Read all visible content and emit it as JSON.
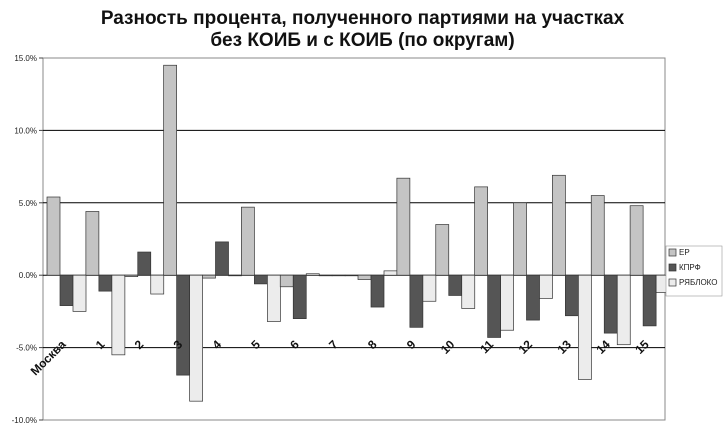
{
  "chart_data": {
    "type": "bar",
    "title_lines": [
      "Разность процента, полученного партиями на участках",
      "без КОИБ и с КОИБ (по округам)"
    ],
    "categories": [
      "Москва",
      "1",
      "2",
      "3",
      "4",
      "5",
      "6",
      "7",
      "8",
      "9",
      "10",
      "11",
      "12",
      "13",
      "14",
      "15"
    ],
    "series": [
      {
        "name": "ЕР",
        "color": "#c4c4c4",
        "values": [
          5.4,
          4.4,
          -0.1,
          14.5,
          -0.2,
          4.7,
          -0.8,
          0.0,
          -0.3,
          6.7,
          3.5,
          6.1,
          5.0,
          6.9,
          5.5,
          4.8
        ]
      },
      {
        "name": "КПРФ",
        "color": "#555555",
        "values": [
          -2.1,
          -1.1,
          1.6,
          -6.9,
          2.3,
          -0.6,
          -3.0,
          0.0,
          -2.2,
          -3.6,
          -1.4,
          -4.3,
          -3.1,
          -2.8,
          -4.0,
          -3.5
        ]
      },
      {
        "name": "РЯБЛОКО",
        "color": "#ececec",
        "values": [
          -2.5,
          -5.5,
          -1.3,
          -8.7,
          0.0,
          -3.2,
          0.1,
          0.0,
          0.3,
          -1.8,
          -2.3,
          -3.8,
          -1.6,
          -7.2,
          -4.8,
          -1.2
        ]
      }
    ],
    "y_ticks": [
      "15.0%",
      "10.0%",
      "5.0%",
      "0.0%",
      "-5.0%",
      "-10.0%"
    ],
    "ylim": [
      -10,
      15
    ],
    "grid": true,
    "legend_position": "right"
  }
}
